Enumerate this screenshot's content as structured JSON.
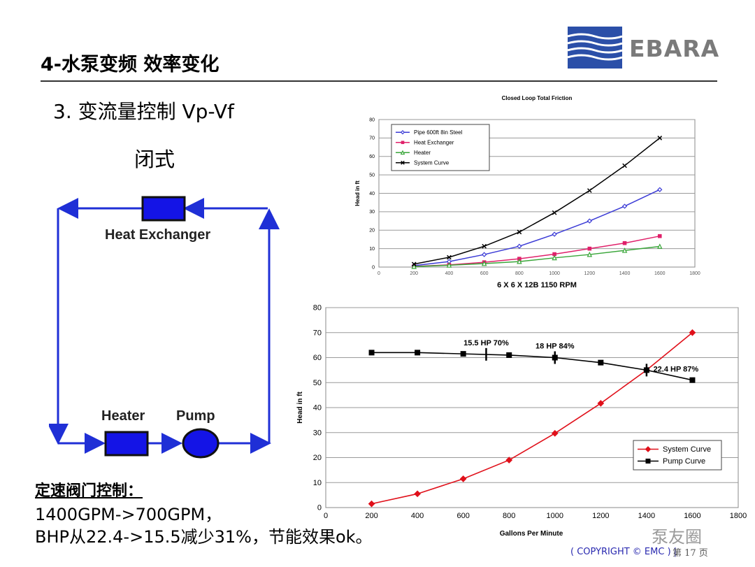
{
  "slide": {
    "title": "4-水泵变频 效率变化",
    "item": "3.  变流量控制 Vp-Vf",
    "subitem": "闭式"
  },
  "logo": {
    "text": "EBARA",
    "color": "#2b4fa8"
  },
  "diagram": {
    "heat_exchanger_label": "Heat Exchanger",
    "heater_label": "Heater",
    "pump_label": "Pump",
    "line_color": "#1f2fd6",
    "box_color": "#1414e6"
  },
  "caption": {
    "heading": "定速阀门控制：",
    "line1": "1400GPM->700GPM，",
    "line2": "BHP从22.4->15.5减少31%，节能效果ok。"
  },
  "chart_data": [
    {
      "type": "line",
      "title": "Closed Loop Total Friction",
      "xlabel": "6 X 6 X 12B  1150 RPM",
      "ylabel": "Head in ft",
      "xlim": [
        0,
        1800
      ],
      "ylim": [
        0,
        80
      ],
      "xticks": [
        0,
        200,
        400,
        600,
        800,
        1000,
        1200,
        1400,
        1600,
        1800
      ],
      "yticks": [
        0,
        10,
        20,
        30,
        40,
        50,
        60,
        70,
        80
      ],
      "legend_position": "top-left",
      "grid": true,
      "series": [
        {
          "name": "Pipe 600ft 8in Steel",
          "color": "#3b3bd6",
          "marker": "diamond-open",
          "x": [
            200,
            400,
            600,
            800,
            1000,
            1200,
            1400,
            1600
          ],
          "y": [
            0.8,
            3,
            6.8,
            11.3,
            17.8,
            25,
            33,
            42
          ]
        },
        {
          "name": "Heat Exchanger",
          "color": "#e0206a",
          "marker": "square",
          "x": [
            200,
            400,
            600,
            800,
            1000,
            1200,
            1400,
            1600
          ],
          "y": [
            0.4,
            1.2,
            2.6,
            4.5,
            7,
            10,
            13,
            16.8
          ]
        },
        {
          "name": "Heater",
          "color": "#3aa63a",
          "marker": "triangle-open",
          "x": [
            200,
            400,
            600,
            800,
            1000,
            1200,
            1400,
            1600
          ],
          "y": [
            0.3,
            1,
            1.9,
            3,
            5,
            6.8,
            9,
            11.2
          ]
        },
        {
          "name": "System Curve",
          "color": "#000000",
          "marker": "x",
          "x": [
            200,
            400,
            600,
            800,
            1000,
            1200,
            1400,
            1600
          ],
          "y": [
            1.6,
            5.3,
            11.3,
            19,
            29.5,
            41.5,
            55,
            70
          ]
        }
      ]
    },
    {
      "type": "line",
      "title": "",
      "xlabel": "Gallons Per Minute",
      "ylabel": "Head in ft",
      "xlim": [
        0,
        1800
      ],
      "ylim": [
        0,
        80
      ],
      "xticks": [
        0,
        200,
        400,
        600,
        800,
        1000,
        1200,
        1400,
        1600,
        1800
      ],
      "yticks": [
        0,
        10,
        20,
        30,
        40,
        50,
        60,
        70,
        80
      ],
      "legend_position": "bottom-right",
      "grid": true,
      "series": [
        {
          "name": "System Curve",
          "color": "#e0101a",
          "marker": "diamond",
          "x": [
            200,
            400,
            600,
            800,
            1000,
            1200,
            1400,
            1600
          ],
          "y": [
            1.5,
            5.5,
            11.5,
            19,
            29.7,
            41.7,
            55,
            70
          ]
        },
        {
          "name": "Pump Curve",
          "color": "#000000",
          "marker": "square",
          "x": [
            200,
            400,
            600,
            800,
            1000,
            1200,
            1400,
            1600
          ],
          "y": [
            62,
            62,
            61.5,
            61,
            60,
            58,
            55,
            51
          ]
        }
      ],
      "annotations": [
        {
          "text": "15.5 HP  70%",
          "x": 700,
          "y": 61.3
        },
        {
          "text": "18 HP  84%",
          "x": 1000,
          "y": 60
        },
        {
          "text": "22.4 HP  87%",
          "x": 1400,
          "y": 55
        }
      ]
    }
  ],
  "footer": {
    "watermark": "泵友圈",
    "copyright": "( COPYRIGHT © EMC ) |",
    "page": "第 17 页"
  }
}
